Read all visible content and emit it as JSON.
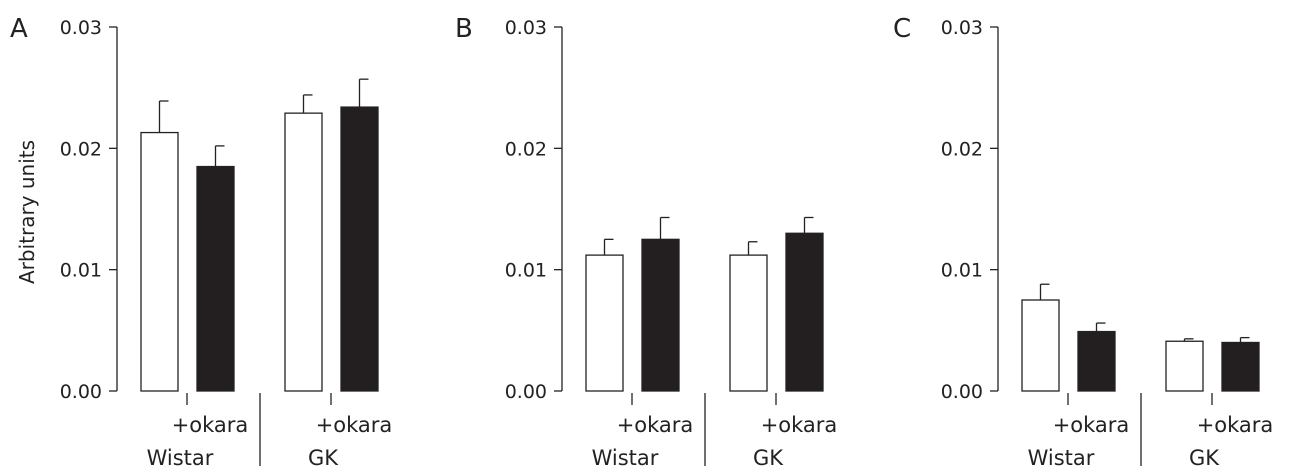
{
  "figure": {
    "ylabel": "Arbitrary units"
  },
  "colors": {
    "control_bar": "#ffffff",
    "okara_bar": "#231f20",
    "axis": "#222222"
  },
  "chart_data": [
    {
      "type": "bar",
      "panel": "A",
      "ylim": [
        0,
        0.03
      ],
      "yticks": [
        "0.00",
        "0.01",
        "0.02",
        "0.03"
      ],
      "ytick_values": [
        0,
        0.01,
        0.02,
        0.03
      ],
      "groups": [
        "Wistar",
        "GK"
      ],
      "sublabel": "+okara",
      "bars": [
        {
          "group": "Wistar",
          "treatment": "control",
          "value": 0.0213,
          "error": 0.0026
        },
        {
          "group": "Wistar",
          "treatment": "okara",
          "value": 0.0185,
          "error": 0.0017
        },
        {
          "group": "GK",
          "treatment": "control",
          "value": 0.0229,
          "error": 0.0015
        },
        {
          "group": "GK",
          "treatment": "okara",
          "value": 0.0234,
          "error": 0.0023
        }
      ]
    },
    {
      "type": "bar",
      "panel": "B",
      "ylim": [
        0,
        0.03
      ],
      "yticks": [
        "0.00",
        "0.01",
        "0.02",
        "0.03"
      ],
      "ytick_values": [
        0,
        0.01,
        0.02,
        0.03
      ],
      "groups": [
        "Wistar",
        "GK"
      ],
      "sublabel": "+okara",
      "bars": [
        {
          "group": "Wistar",
          "treatment": "control",
          "value": 0.0112,
          "error": 0.0013
        },
        {
          "group": "Wistar",
          "treatment": "okara",
          "value": 0.0125,
          "error": 0.0018
        },
        {
          "group": "GK",
          "treatment": "control",
          "value": 0.0112,
          "error": 0.0011
        },
        {
          "group": "GK",
          "treatment": "okara",
          "value": 0.013,
          "error": 0.0013
        }
      ]
    },
    {
      "type": "bar",
      "panel": "C",
      "ylim": [
        0,
        0.03
      ],
      "yticks": [
        "0.00",
        "0.01",
        "0.02",
        "0.03"
      ],
      "ytick_values": [
        0,
        0.01,
        0.02,
        0.03
      ],
      "groups": [
        "Wistar",
        "GK"
      ],
      "sublabel": "+okara",
      "bars": [
        {
          "group": "Wistar",
          "treatment": "control",
          "value": 0.0075,
          "error": 0.0013
        },
        {
          "group": "Wistar",
          "treatment": "okara",
          "value": 0.0049,
          "error": 0.0007
        },
        {
          "group": "GK",
          "treatment": "control",
          "value": 0.0041,
          "error": 0.0002
        },
        {
          "group": "GK",
          "treatment": "okara",
          "value": 0.004,
          "error": 0.0004
        }
      ]
    }
  ]
}
